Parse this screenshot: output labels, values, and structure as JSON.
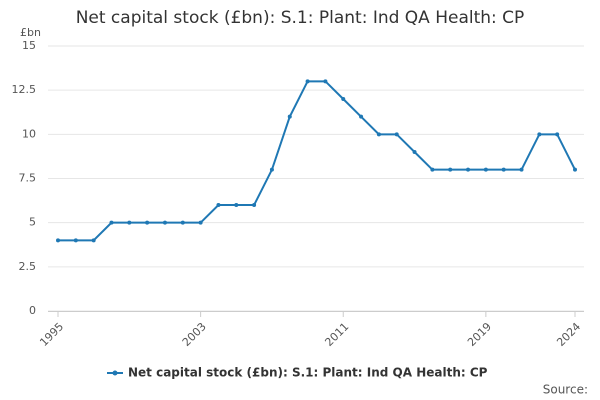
{
  "chart_data": {
    "type": "line",
    "title": "Net capital stock (£bn): S.1: Plant: Ind QA Health: CP",
    "y_label": "£bn",
    "source": "Source:",
    "x": [
      1995,
      1996,
      1997,
      1998,
      1999,
      2000,
      2001,
      2002,
      2003,
      2004,
      2005,
      2006,
      2007,
      2008,
      2009,
      2010,
      2011,
      2012,
      2013,
      2014,
      2015,
      2016,
      2017,
      2018,
      2019,
      2020,
      2021,
      2022,
      2023,
      2024
    ],
    "series": [
      {
        "name": "Net capital stock (£bn): S.1: Plant: Ind QA Health: CP",
        "color": "#1f78b4",
        "values": [
          4,
          4,
          4,
          5,
          5,
          5,
          5,
          5,
          5,
          6,
          6,
          6,
          8,
          11,
          13,
          13,
          12,
          11,
          10,
          10,
          9,
          8,
          8,
          8,
          8,
          8,
          8,
          10,
          10,
          8
        ]
      }
    ],
    "xlim": [
      1995,
      2024
    ],
    "xticks": [
      1995,
      2003,
      2011,
      2019,
      2024
    ],
    "ylim": [
      0,
      15
    ],
    "yticks": [
      0,
      2.5,
      5,
      7.5,
      10,
      12.5,
      15
    ],
    "grid": true
  }
}
